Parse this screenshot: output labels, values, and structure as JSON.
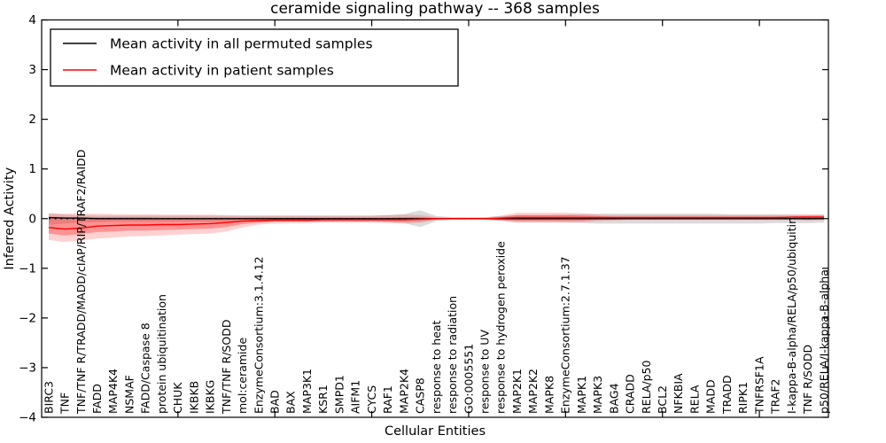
{
  "title": "ceramide signaling pathway -- 368 samples",
  "legend": {
    "position": "upper left",
    "items": [
      {
        "label": "Mean activity in all permuted samples",
        "color": "#000000"
      },
      {
        "label": "Mean activity in patient samples",
        "color": "#ff0000"
      }
    ]
  },
  "chart_data": {
    "type": "line",
    "title": "ceramide signaling pathway -- 368 samples",
    "xlabel": "Cellular Entities",
    "ylabel": "Inferred Activity",
    "ylim": [
      -4,
      4
    ],
    "yticks": [
      4,
      3,
      2,
      1,
      0,
      -1,
      -2,
      -3,
      -4
    ],
    "grid": false,
    "legend_position": "upper left",
    "zero_line": {
      "style": "dotted",
      "color": "#000000",
      "y": 0
    },
    "xtick_indices": [
      8,
      14,
      20,
      26,
      32,
      38,
      44
    ],
    "categories": [
      "BIRC3",
      "TNF",
      "TNF/TNF R/TRADD/MADD/cIAP/RIP/TRAF2/RAIDD",
      "FADD",
      "MAP4K4",
      "NSMAF",
      "FADD/Caspase 8",
      "protein ubiquitination",
      "CHUK",
      "IKBKB",
      "IKBKG",
      "TNF/TNF R/SODD",
      "mol:ceramide",
      "EnzymeConsortium:3.1.4.12",
      "BAD",
      "BAX",
      "MAP3K1",
      "KSR1",
      "SMPD1",
      "AIFM1",
      "CYCS",
      "RAF1",
      "MAP2K4",
      "CASP8",
      "response to heat",
      "response to radiation",
      "GO:0005551",
      "response to UV",
      "response to hydrogen peroxide",
      "MAP2K1",
      "MAP2K2",
      "MAPK8",
      "EnzymeConsortium:2.7.1.37",
      "MAPK1",
      "MAPK3",
      "BAG4",
      "CRADD",
      "RELA/p50",
      "BCL2",
      "NFKBIA",
      "RELA",
      "MADD",
      "TRADD",
      "RIPK1",
      "TNFRSF1A",
      "TRAF2",
      "I-kappa-B-alpha/RELA/p50/ubiquitin",
      "TNF R/SODD",
      "p50/RELA/I-kappa-B-alpha"
    ],
    "series": [
      {
        "name": "Mean activity in all permuted samples",
        "color": "#000000",
        "values": [
          0.02,
          0.01,
          0.01,
          0.0,
          0.0,
          0.0,
          0.0,
          0.0,
          0.0,
          0.0,
          0.0,
          0.0,
          0.0,
          0.0,
          0.0,
          0.0,
          0.0,
          0.0,
          0.0,
          0.0,
          0.0,
          0.0,
          0.0,
          0.0,
          0.0,
          0.0,
          0.0,
          0.0,
          0.0,
          0.0,
          0.0,
          0.0,
          0.0,
          0.0,
          0.0,
          0.0,
          0.0,
          0.0,
          0.0,
          0.0,
          0.0,
          0.0,
          0.0,
          0.0,
          0.0,
          0.0,
          0.0,
          0.0,
          0.0
        ]
      },
      {
        "name": "Mean activity in patient samples",
        "color": "#ff0000",
        "values": [
          -0.18,
          -0.21,
          -0.19,
          -0.15,
          -0.14,
          -0.13,
          -0.13,
          -0.12,
          -0.12,
          -0.11,
          -0.1,
          -0.08,
          -0.05,
          -0.04,
          -0.03,
          -0.03,
          -0.03,
          -0.02,
          -0.02,
          -0.02,
          -0.02,
          -0.02,
          -0.02,
          -0.01,
          0.0,
          0.0,
          0.0,
          0.0,
          0.01,
          0.02,
          0.02,
          0.02,
          0.02,
          0.02,
          0.02,
          0.02,
          0.02,
          0.02,
          0.02,
          0.02,
          0.02,
          0.02,
          0.02,
          0.02,
          0.02,
          0.02,
          0.03,
          0.03,
          0.03
        ]
      }
    ],
    "bands": [
      {
        "name": "permuted-samples-band",
        "color": "#000000",
        "opacity": 0.14,
        "lo": [
          -0.12,
          -0.1,
          -0.08,
          -0.07,
          -0.06,
          -0.06,
          -0.06,
          -0.06,
          -0.06,
          -0.06,
          -0.06,
          -0.06,
          -0.06,
          -0.06,
          -0.06,
          -0.06,
          -0.06,
          -0.06,
          -0.06,
          -0.06,
          -0.06,
          -0.07,
          -0.09,
          -0.17,
          -0.05,
          -0.03,
          -0.03,
          -0.03,
          -0.05,
          -0.07,
          -0.07,
          -0.07,
          -0.08,
          -0.09,
          -0.1,
          -0.1,
          -0.1,
          -0.1,
          -0.1,
          -0.1,
          -0.1,
          -0.1,
          -0.1,
          -0.1,
          -0.1,
          -0.09,
          -0.09,
          -0.09,
          -0.08
        ],
        "hi": [
          0.1,
          0.08,
          0.07,
          0.06,
          0.06,
          0.06,
          0.06,
          0.06,
          0.06,
          0.06,
          0.06,
          0.06,
          0.06,
          0.06,
          0.06,
          0.06,
          0.06,
          0.06,
          0.06,
          0.06,
          0.06,
          0.07,
          0.09,
          0.17,
          0.05,
          0.03,
          0.03,
          0.03,
          0.05,
          0.07,
          0.07,
          0.07,
          0.08,
          0.09,
          0.1,
          0.1,
          0.1,
          0.1,
          0.1,
          0.1,
          0.1,
          0.1,
          0.09,
          0.09,
          0.09,
          0.09,
          0.09,
          0.08,
          0.08
        ]
      },
      {
        "name": "patient-samples-band-outer",
        "color": "#ff0000",
        "opacity": 0.18,
        "lo": [
          -0.43,
          -0.47,
          -0.44,
          -0.4,
          -0.38,
          -0.36,
          -0.35,
          -0.34,
          -0.32,
          -0.31,
          -0.3,
          -0.26,
          -0.18,
          -0.12,
          -0.1,
          -0.09,
          -0.09,
          -0.08,
          -0.08,
          -0.08,
          -0.08,
          -0.09,
          -0.1,
          -0.08,
          -0.03,
          -0.02,
          -0.02,
          -0.02,
          -0.04,
          -0.08,
          -0.08,
          -0.08,
          -0.08,
          -0.07,
          -0.05,
          -0.04,
          -0.03,
          -0.03,
          -0.03,
          -0.03,
          -0.03,
          -0.03,
          -0.03,
          -0.03,
          -0.03,
          -0.03,
          -0.03,
          -0.04,
          -0.03
        ],
        "hi": [
          0.11,
          0.1,
          0.1,
          0.1,
          0.09,
          0.09,
          0.09,
          0.08,
          0.08,
          0.08,
          0.08,
          0.07,
          0.06,
          0.06,
          0.06,
          0.06,
          0.06,
          0.06,
          0.06,
          0.06,
          0.06,
          0.07,
          0.08,
          0.07,
          0.03,
          0.02,
          0.02,
          0.02,
          0.06,
          0.12,
          0.12,
          0.12,
          0.12,
          0.11,
          0.08,
          0.07,
          0.07,
          0.07,
          0.07,
          0.07,
          0.07,
          0.07,
          0.07,
          0.07,
          0.07,
          0.07,
          0.07,
          0.08,
          0.08
        ]
      },
      {
        "name": "patient-samples-band-inner",
        "color": "#ff0000",
        "opacity": 0.3,
        "lo": [
          -0.3,
          -0.34,
          -0.31,
          -0.27,
          -0.26,
          -0.24,
          -0.24,
          -0.23,
          -0.22,
          -0.21,
          -0.2,
          -0.17,
          -0.11,
          -0.08,
          -0.06,
          -0.06,
          -0.06,
          -0.05,
          -0.05,
          -0.05,
          -0.05,
          -0.05,
          -0.06,
          -0.05,
          -0.02,
          -0.01,
          -0.01,
          -0.01,
          -0.02,
          -0.04,
          -0.04,
          -0.04,
          -0.04,
          -0.04,
          -0.02,
          -0.02,
          -0.01,
          -0.01,
          -0.01,
          -0.01,
          -0.01,
          -0.01,
          -0.01,
          -0.01,
          -0.01,
          -0.01,
          -0.01,
          -0.02,
          -0.01
        ],
        "hi": [
          0.04,
          0.03,
          0.03,
          0.03,
          0.03,
          0.03,
          0.03,
          0.02,
          0.02,
          0.02,
          0.02,
          0.02,
          0.02,
          0.02,
          0.02,
          0.02,
          0.02,
          0.02,
          0.02,
          0.02,
          0.02,
          0.02,
          0.03,
          0.03,
          0.01,
          0.01,
          0.01,
          0.01,
          0.03,
          0.07,
          0.07,
          0.07,
          0.07,
          0.06,
          0.05,
          0.04,
          0.04,
          0.04,
          0.04,
          0.04,
          0.04,
          0.04,
          0.04,
          0.04,
          0.04,
          0.04,
          0.04,
          0.05,
          0.05
        ]
      }
    ]
  }
}
